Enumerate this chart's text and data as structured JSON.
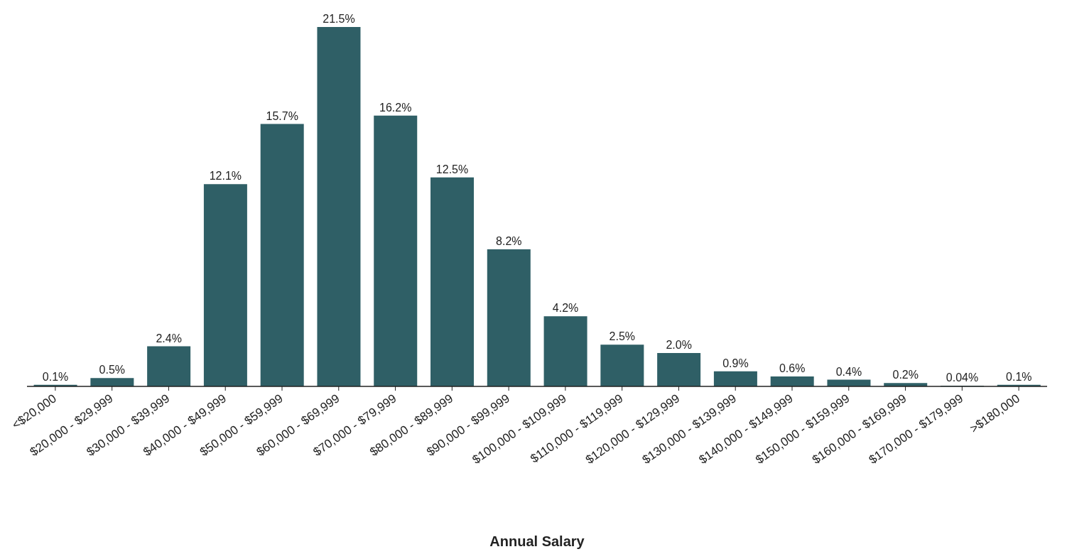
{
  "chart_data": {
    "type": "bar",
    "xlabel": "Annual Salary",
    "categories": [
      "<$20,000",
      "$20,000 - $29,999",
      "$30,000 - $39,999",
      "$40,000 - $49,999",
      "$50,000 - $59,999",
      "$60,000 - $69,999",
      "$70,000 - $79,999",
      "$80,000 - $89,999",
      "$90,000 - $99,999",
      "$100,000 - $109,999",
      "$110,000 - $119,999",
      "$120,000 - $129,999",
      "$130,000 - $139,999",
      "$140,000 - $149,999",
      "$150,000 - $159,999",
      "$160,000 - $169,999",
      "$170,000 - $179,999",
      ">$180,000"
    ],
    "values": [
      0.1,
      0.5,
      2.4,
      12.1,
      15.7,
      21.5,
      16.2,
      12.5,
      8.2,
      4.2,
      2.5,
      2.0,
      0.9,
      0.6,
      0.4,
      0.2,
      0.04,
      0.1
    ],
    "value_labels": [
      "0.1%",
      "0.5%",
      "2.4%",
      "12.1%",
      "15.7%",
      "21.5%",
      "16.2%",
      "12.5%",
      "8.2%",
      "4.2%",
      "2.5%",
      "2.0%",
      "0.9%",
      "0.6%",
      "0.4%",
      "0.2%",
      "0.04%",
      "0.1%"
    ],
    "color": "#2f5f66",
    "grid": false,
    "legend": false
  }
}
